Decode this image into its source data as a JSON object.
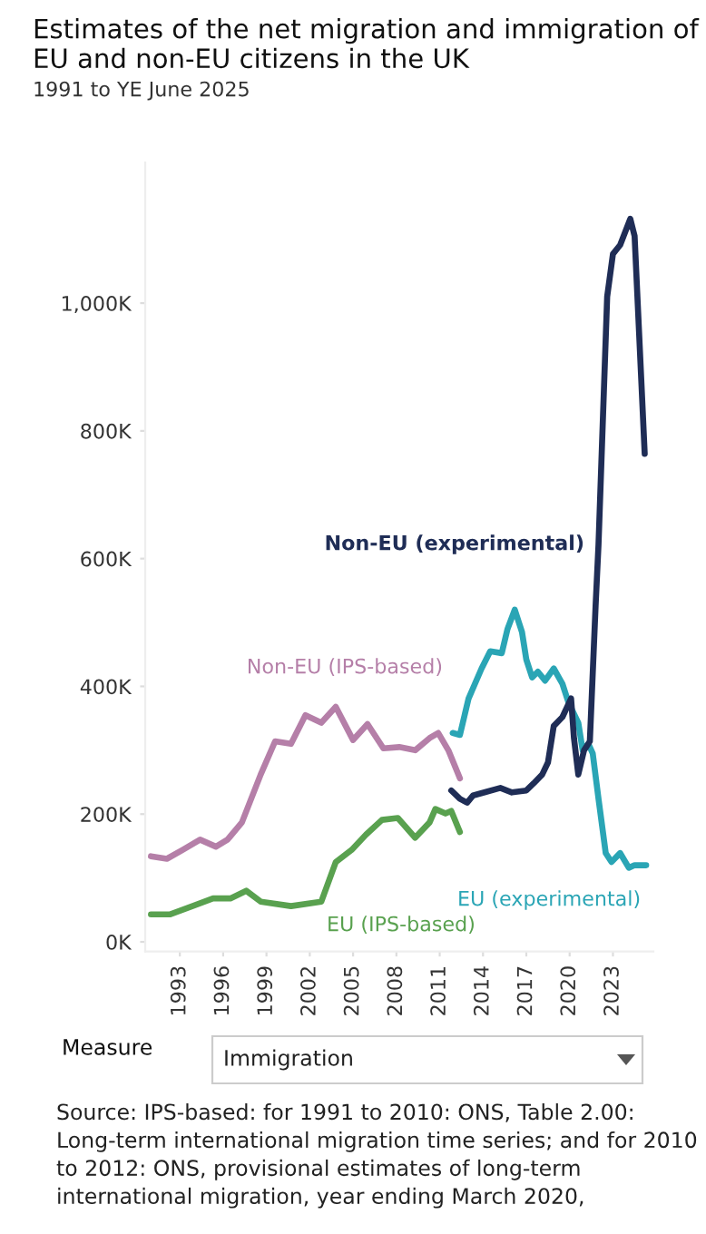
{
  "chart_data": {
    "type": "line",
    "title": "Estimates of the net migration and immigration of EU and non-EU citizens in the UK",
    "subtitle": "1991 to YE June 2025",
    "series": [
      {
        "name": "Non-EU (IPS-based)",
        "color": "#b57fa8",
        "x": [
          1991.0,
          1992.1,
          1993.2,
          1994.4,
          1995.5,
          1996.3,
          1997.3,
          1998.6,
          1999.6,
          2000.7,
          2001.7,
          2002.8,
          2003.8,
          2005.0,
          2006.0,
          2007.1,
          2008.2,
          2009.3,
          2010.3,
          2010.9,
          2011.6,
          2012.4
        ],
        "values": [
          134,
          130,
          144,
          160,
          149,
          160,
          187,
          262,
          314,
          310,
          355,
          343,
          368,
          316,
          341,
          303,
          305,
          300,
          319,
          327,
          300,
          256
        ]
      },
      {
        "name": "EU (IPS-based)",
        "color": "#59a14f",
        "x": [
          1991.0,
          1992.3,
          1994.0,
          1995.3,
          1996.5,
          1997.6,
          1998.6,
          2000.7,
          2002.8,
          2003.8,
          2004.9,
          2005.9,
          2007.0,
          2008.1,
          2009.3,
          2010.3,
          2010.7,
          2011.4,
          2011.8,
          2012.4
        ],
        "values": [
          43,
          43,
          57,
          68,
          68,
          80,
          63,
          56,
          63,
          125,
          144,
          168,
          191,
          194,
          163,
          187,
          208,
          201,
          205,
          172
        ]
      },
      {
        "name": "EU (experimental)",
        "color": "#2aa5b5",
        "x": [
          2011.9,
          2012.4,
          2013.0,
          2013.9,
          2014.5,
          2015.3,
          2015.7,
          2016.2,
          2016.7,
          2017.0,
          2017.4,
          2017.8,
          2018.3,
          2018.9,
          2019.5,
          2019.9,
          2020.6,
          2020.9,
          2021.3,
          2021.6,
          2022.0,
          2022.5,
          2022.9,
          2023.5,
          2024.1,
          2024.5,
          2025.3
        ],
        "values": [
          327,
          324,
          381,
          428,
          455,
          452,
          490,
          520,
          485,
          442,
          414,
          423,
          409,
          428,
          404,
          376,
          343,
          300,
          310,
          295,
          224,
          139,
          125,
          139,
          116,
          120,
          120
        ]
      },
      {
        "name": "Non-EU (experimental)",
        "color": "#1f2d56",
        "x": [
          2011.8,
          2012.4,
          2012.9,
          2013.3,
          2014.1,
          2015.2,
          2016.0,
          2017.0,
          2017.5,
          2018.1,
          2018.5,
          2018.9,
          2019.5,
          2020.1,
          2020.3,
          2020.6,
          2021.0,
          2021.4,
          2021.8,
          2022.0,
          2022.6,
          2023.0,
          2023.5,
          2024.2,
          2024.5,
          2025.2
        ],
        "values": [
          237,
          224,
          218,
          229,
          234,
          241,
          234,
          237,
          248,
          262,
          281,
          338,
          352,
          381,
          319,
          262,
          300,
          314,
          527,
          622,
          1010,
          1077,
          1091,
          1132,
          1105,
          764
        ]
      }
    ],
    "xlim": [
      1990.6,
      2025.8
    ],
    "xticks": [
      1993,
      1996,
      1999,
      2002,
      2005,
      2008,
      2011,
      2014,
      2017,
      2020,
      2023
    ],
    "ylim": [
      -15,
      1220
    ],
    "yticks": [
      {
        "value": 0,
        "label": "0K"
      },
      {
        "value": 200,
        "label": "200K"
      },
      {
        "value": 400,
        "label": "400K"
      },
      {
        "value": 600,
        "label": "600K"
      },
      {
        "value": 800,
        "label": "800K"
      },
      {
        "value": 1000,
        "label": "1,000K"
      }
    ],
    "grid": false,
    "legend": false,
    "annotations": [
      "Measure",
      "Immigration",
      "Source: IPS-based: for 1991 to 2010: ONS, Table 2.00: Long-term international migration time series; and for 2010 to 2012: ONS, provisional estimates of long-term international migration, year ending March 2020,"
    ]
  }
}
